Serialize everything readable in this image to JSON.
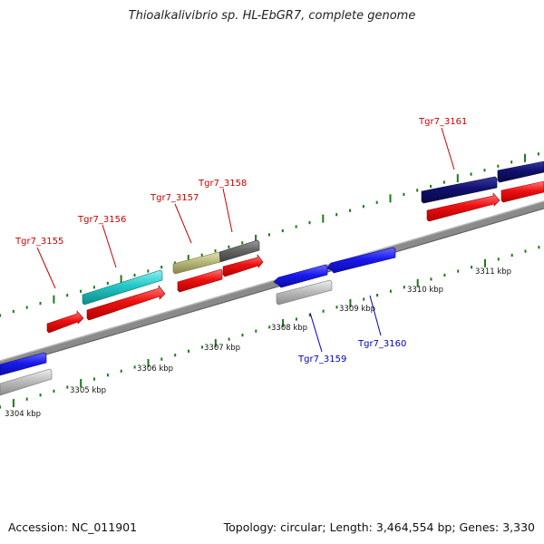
{
  "title": "Thioalkalivibrio sp. HL-EbGR7, complete genome",
  "footer": {
    "accession": "Accession: NC_011901",
    "summary": "Topology: circular; Length: 3,464,554 bp; Genes: 3,330"
  },
  "colors": {
    "red": "#ee1111",
    "navy": "#101070",
    "blue": "#1a1aee",
    "cyan": "#22c8c8",
    "olive": "#b8b87a",
    "darkgray": "#666666",
    "lightgray": "#bdbdbd",
    "tick": "#1a7a1a",
    "backbone": "#8a8a8a",
    "label_forward": "#cc0000",
    "label_reverse": "#0000bb"
  },
  "scale_labels": [
    "3304 kbp",
    "3305 kbp",
    "3306 kbp",
    "3307 kbp",
    "3308 kbp",
    "3309 kbp",
    "3310 kbp",
    "3311 kbp"
  ],
  "gene_labels": {
    "tgr7_3155": "Tgr7_3155",
    "tgr7_3156": "Tgr7_3156",
    "tgr7_3157": "Tgr7_3157",
    "tgr7_3158": "Tgr7_3158",
    "tgr7_3159": "Tgr7_3159",
    "tgr7_3160": "Tgr7_3160",
    "tgr7_3161": "Tgr7_3161"
  }
}
